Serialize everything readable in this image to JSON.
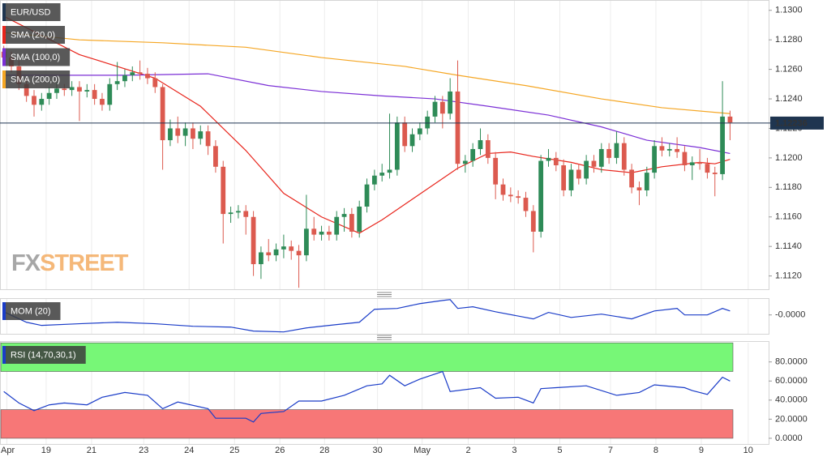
{
  "chart_data": [
    {
      "type": "candlestick",
      "title": "EUR/USD",
      "x": [
        0,
        1,
        2,
        3,
        4,
        5,
        6,
        7,
        8,
        9,
        10,
        11,
        12,
        13,
        14,
        15,
        16,
        17,
        18,
        19,
        20,
        21,
        22,
        23,
        24,
        25,
        26,
        27,
        28,
        29,
        30,
        31,
        32,
        33,
        34,
        35,
        36,
        37,
        38,
        39,
        40,
        41,
        42,
        43,
        44,
        45,
        46,
        47,
        48,
        49,
        50,
        51,
        52,
        53,
        54,
        55,
        56,
        57,
        58,
        59,
        60,
        61,
        62,
        63,
        64,
        65,
        66,
        67,
        68,
        69,
        70,
        71,
        72,
        73,
        74,
        75,
        76,
        77,
        78,
        79,
        80,
        81,
        82,
        83,
        84,
        85,
        86,
        87,
        88,
        89,
        90,
        91,
        92,
        93,
        94,
        95,
        96
      ],
      "open": [
        1.1272,
        1.1268,
        1.1262,
        1.125,
        1.1242,
        1.1236,
        1.124,
        1.1244,
        1.1247,
        1.1246,
        1.1248,
        1.1245,
        1.1246,
        1.124,
        1.1236,
        1.125,
        1.1252,
        1.1256,
        1.1258,
        1.1257,
        1.1254,
        1.1248,
        1.1212,
        1.122,
        1.1215,
        1.122,
        1.1213,
        1.1218,
        1.1208,
        1.1194,
        1.1162,
        1.1163,
        1.1164,
        1.116,
        1.1128,
        1.1136,
        1.1134,
        1.1138,
        1.114,
        1.1137,
        1.1134,
        1.1152,
        1.1148,
        1.115,
        1.1148,
        1.116,
        1.1162,
        1.115,
        1.1167,
        1.1182,
        1.1188,
        1.119,
        1.1192,
        1.1224,
        1.1208,
        1.1216,
        1.122,
        1.1228,
        1.1238,
        1.123,
        1.1245,
        1.1196,
        1.1198,
        1.1206,
        1.1212,
        1.12,
        1.1182,
        1.1175,
        1.1174,
        1.1173,
        1.1164,
        1.115,
        1.1198,
        1.12,
        1.1195,
        1.1178,
        1.1192,
        1.1186,
        1.1198,
        1.1194,
        1.1206,
        1.12,
        1.121,
        1.1192,
        1.118,
        1.1178,
        1.119,
        1.1208,
        1.1205,
        1.1206,
        1.1204,
        1.1195,
        1.1197,
        1.1196,
        1.119,
        1.1189,
        1.1228
      ],
      "high": [
        1.1276,
        1.1272,
        1.1266,
        1.1254,
        1.1246,
        1.1244,
        1.1248,
        1.1251,
        1.125,
        1.1252,
        1.1252,
        1.125,
        1.125,
        1.1244,
        1.1254,
        1.1265,
        1.126,
        1.1262,
        1.1266,
        1.1261,
        1.1258,
        1.125,
        1.1226,
        1.1228,
        1.1224,
        1.1224,
        1.1222,
        1.1222,
        1.1212,
        1.1198,
        1.1167,
        1.1168,
        1.1168,
        1.1164,
        1.114,
        1.1145,
        1.1142,
        1.1148,
        1.1144,
        1.1141,
        1.1175,
        1.116,
        1.1154,
        1.1154,
        1.1164,
        1.1166,
        1.1166,
        1.1171,
        1.1186,
        1.1192,
        1.1196,
        1.123,
        1.1228,
        1.1228,
        1.122,
        1.1224,
        1.1232,
        1.1242,
        1.1242,
        1.1254,
        1.1266,
        1.1202,
        1.121,
        1.122,
        1.1216,
        1.1204,
        1.1186,
        1.118,
        1.1178,
        1.1177,
        1.1168,
        1.1202,
        1.1206,
        1.1204,
        1.1199,
        1.1196,
        1.1196,
        1.1202,
        1.1202,
        1.121,
        1.121,
        1.1218,
        1.1214,
        1.1196,
        1.1184,
        1.1194,
        1.1212,
        1.1214,
        1.121,
        1.1214,
        1.1208,
        1.1201,
        1.1206,
        1.12,
        1.1194,
        1.1252,
        1.1232
      ],
      "low": [
        1.1264,
        1.1258,
        1.1246,
        1.1238,
        1.1228,
        1.1232,
        1.1236,
        1.124,
        1.1242,
        1.1242,
        1.1225,
        1.1241,
        1.1236,
        1.1232,
        1.1232,
        1.1246,
        1.1248,
        1.1252,
        1.1253,
        1.125,
        1.1244,
        1.1192,
        1.1208,
        1.121,
        1.1208,
        1.1206,
        1.1209,
        1.1202,
        1.119,
        1.1142,
        1.1156,
        1.1159,
        1.1148,
        1.112,
        1.1118,
        1.113,
        1.113,
        1.1132,
        1.1131,
        1.1112,
        1.113,
        1.1144,
        1.1144,
        1.1144,
        1.1144,
        1.115,
        1.1146,
        1.1146,
        1.1163,
        1.1178,
        1.1184,
        1.1186,
        1.1188,
        1.1204,
        1.1204,
        1.1212,
        1.1216,
        1.1224,
        1.122,
        1.1226,
        1.1192,
        1.119,
        1.1194,
        1.1202,
        1.1196,
        1.1172,
        1.1171,
        1.117,
        1.1169,
        1.116,
        1.1136,
        1.1146,
        1.1194,
        1.1191,
        1.1174,
        1.1174,
        1.1182,
        1.1182,
        1.119,
        1.119,
        1.1196,
        1.1196,
        1.1188,
        1.1176,
        1.1168,
        1.1174,
        1.1186,
        1.1201,
        1.1201,
        1.12,
        1.1191,
        1.1185,
        1.1192,
        1.1186,
        1.1174,
        1.1185,
        1.1212
      ],
      "close": [
        1.1268,
        1.1262,
        1.125,
        1.1242,
        1.1236,
        1.124,
        1.1244,
        1.1247,
        1.1246,
        1.1248,
        1.1245,
        1.1246,
        1.124,
        1.1236,
        1.125,
        1.1252,
        1.1256,
        1.1258,
        1.1257,
        1.1254,
        1.1248,
        1.1212,
        1.122,
        1.1215,
        1.122,
        1.1213,
        1.1218,
        1.1208,
        1.1194,
        1.1162,
        1.1163,
        1.1164,
        1.116,
        1.1128,
        1.1136,
        1.1134,
        1.1138,
        1.114,
        1.1137,
        1.1134,
        1.1152,
        1.1148,
        1.115,
        1.1148,
        1.116,
        1.1162,
        1.115,
        1.1167,
        1.1182,
        1.1188,
        1.119,
        1.1192,
        1.1224,
        1.1208,
        1.1216,
        1.122,
        1.1228,
        1.1238,
        1.123,
        1.1245,
        1.1196,
        1.1198,
        1.1206,
        1.1212,
        1.12,
        1.1182,
        1.1175,
        1.1174,
        1.1173,
        1.1164,
        1.115,
        1.1198,
        1.12,
        1.1195,
        1.1178,
        1.1192,
        1.1186,
        1.1198,
        1.1194,
        1.1206,
        1.12,
        1.121,
        1.1192,
        1.118,
        1.1178,
        1.119,
        1.1208,
        1.1205,
        1.1206,
        1.1204,
        1.1195,
        1.1197,
        1.1196,
        1.119,
        1.1189,
        1.1228,
        1.1224
      ],
      "up_color": "#2e8b57",
      "down_color": "#dc5a4f",
      "title_color": "#1f3550",
      "series": [
        {
          "name": "SMA (20,0)",
          "color": "#e8241b",
          "x": [
            0,
            10,
            20,
            26,
            32,
            37,
            42,
            47,
            50,
            54,
            60,
            64,
            67,
            70,
            75,
            79,
            83,
            87,
            92,
            94,
            96
          ],
          "values": [
            1.1296,
            1.127,
            1.1254,
            1.1235,
            1.1205,
            1.1176,
            1.116,
            1.1149,
            1.1158,
            1.1172,
            1.1193,
            1.1203,
            1.1204,
            1.1201,
            1.1197,
            1.1192,
            1.119,
            1.1194,
            1.1197,
            1.1196,
            1.1199
          ]
        },
        {
          "name": "SMA (100,0)",
          "color": "#7b2fd6",
          "x": [
            0,
            16,
            27,
            35,
            42,
            50,
            57,
            64,
            72,
            79,
            85,
            92,
            96
          ],
          "values": [
            1.1256,
            1.1256,
            1.1257,
            1.1249,
            1.1245,
            1.1242,
            1.124,
            1.1235,
            1.1229,
            1.1221,
            1.1212,
            1.1207,
            1.1203
          ]
        },
        {
          "name": "SMA (200,0)",
          "color": "#f5a623",
          "x": [
            0,
            10,
            21,
            32,
            42,
            53,
            60,
            69,
            79,
            87,
            96
          ],
          "values": [
            1.1285,
            1.128,
            1.1278,
            1.1275,
            1.1268,
            1.1262,
            1.1256,
            1.1249,
            1.124,
            1.1234,
            1.123
          ]
        }
      ],
      "last_price": {
        "value": 1.12236,
        "label": "1.12236"
      },
      "watermark": [
        "FX",
        "STREET"
      ],
      "xlim": [
        -0.5,
        101.1
      ],
      "ylim": [
        1.1111,
        1.1307
      ],
      "yticks": [
        {
          "value": 1.112,
          "label": "1.1120"
        },
        {
          "value": 1.114,
          "label": "1.1140"
        },
        {
          "value": 1.116,
          "label": "1.1160"
        },
        {
          "value": 1.118,
          "label": "1.1180"
        },
        {
          "value": 1.12,
          "label": "1.1200"
        },
        {
          "value": 1.122,
          "label": "1.1220"
        },
        {
          "value": 1.124,
          "label": "1.1240"
        },
        {
          "value": 1.126,
          "label": "1.1260"
        },
        {
          "value": 1.128,
          "label": "1.1280"
        },
        {
          "value": 1.13,
          "label": "1.1300"
        }
      ],
      "xticks": [
        {
          "value": 0.4,
          "label": "Apr"
        },
        {
          "value": 5.6,
          "label": "19"
        },
        {
          "value": 11.6,
          "label": "21"
        },
        {
          "value": 18.5,
          "label": "23"
        },
        {
          "value": 24.5,
          "label": "24"
        },
        {
          "value": 30.5,
          "label": "25"
        },
        {
          "value": 36.5,
          "label": "26"
        },
        {
          "value": 42.4,
          "label": "28"
        },
        {
          "value": 49.4,
          "label": "30"
        },
        {
          "value": 55.3,
          "label": "May"
        },
        {
          "value": 61.4,
          "label": "2"
        },
        {
          "value": 67.5,
          "label": "3"
        },
        {
          "value": 73.5,
          "label": "5"
        },
        {
          "value": 80.2,
          "label": "7"
        },
        {
          "value": 86.2,
          "label": "8"
        },
        {
          "value": 92.2,
          "label": "9"
        },
        {
          "value": 98.4,
          "label": "10"
        }
      ]
    },
    {
      "type": "line",
      "title": "MOM (20)",
      "title_color": "#1a3cc8",
      "series": [
        {
          "color": "#1a3cc8",
          "x": [
            0,
            3,
            5,
            10,
            15,
            20,
            25,
            30,
            33,
            37,
            40,
            44,
            47,
            49,
            52,
            55,
            58,
            59,
            60,
            62,
            65,
            70,
            72,
            75,
            79,
            83,
            86,
            89,
            90,
            93,
            95,
            96
          ],
          "values": [
            0.0015,
            -0.0035,
            -0.005,
            -0.0042,
            -0.0035,
            -0.0042,
            -0.0054,
            -0.0058,
            -0.0077,
            -0.0081,
            -0.0062,
            -0.0046,
            -0.0035,
            0.0027,
            0.0031,
            0.0054,
            0.0069,
            0.0073,
            0.0031,
            0.0039,
            0.0015,
            -0.0019,
            0.0012,
            -0.0012,
            0.0004,
            -0.0019,
            0.0019,
            0.0031,
            0,
            0,
            0.0031,
            0.0019
          ]
        }
      ],
      "ylim": [
        -0.009,
        0.008
      ],
      "yticks": [
        {
          "value": 0,
          "label": "-0.0000"
        }
      ]
    },
    {
      "type": "line",
      "title": "RSI (14,70,30,1)",
      "title_color": "#1a3cc8",
      "series": [
        {
          "color": "#1a3cc8",
          "x": [
            0,
            2,
            4,
            6,
            8,
            11,
            13,
            16,
            19,
            21,
            23,
            27,
            28,
            32,
            33,
            34,
            37,
            39,
            42,
            45,
            48,
            50,
            51,
            53,
            55,
            58,
            59,
            63,
            65,
            68,
            70,
            71,
            73,
            77,
            81,
            84,
            86,
            90,
            91,
            93,
            95,
            96
          ],
          "values": [
            49,
            37,
            29,
            35,
            37,
            35,
            43,
            48,
            45,
            31,
            38,
            31,
            21,
            21,
            17,
            26,
            28,
            39,
            39,
            45,
            55,
            57,
            66,
            55,
            62,
            70,
            49,
            53,
            42,
            43,
            37,
            52,
            53,
            55,
            45,
            48,
            56,
            53,
            50,
            46,
            64,
            60
          ]
        }
      ],
      "bands": [
        {
          "range": [
            70,
            100
          ],
          "color": "#77f777"
        },
        {
          "range": [
            0,
            30
          ],
          "color": "#f77777"
        }
      ],
      "ylim": [
        -6,
        101
      ],
      "yticks": [
        {
          "value": 0,
          "label": "0.0000"
        },
        {
          "value": 20,
          "label": "20.0000"
        },
        {
          "value": 40,
          "label": "40.0000"
        },
        {
          "value": 60,
          "label": "60.0000"
        },
        {
          "value": 80,
          "label": "80.0000"
        }
      ]
    }
  ]
}
